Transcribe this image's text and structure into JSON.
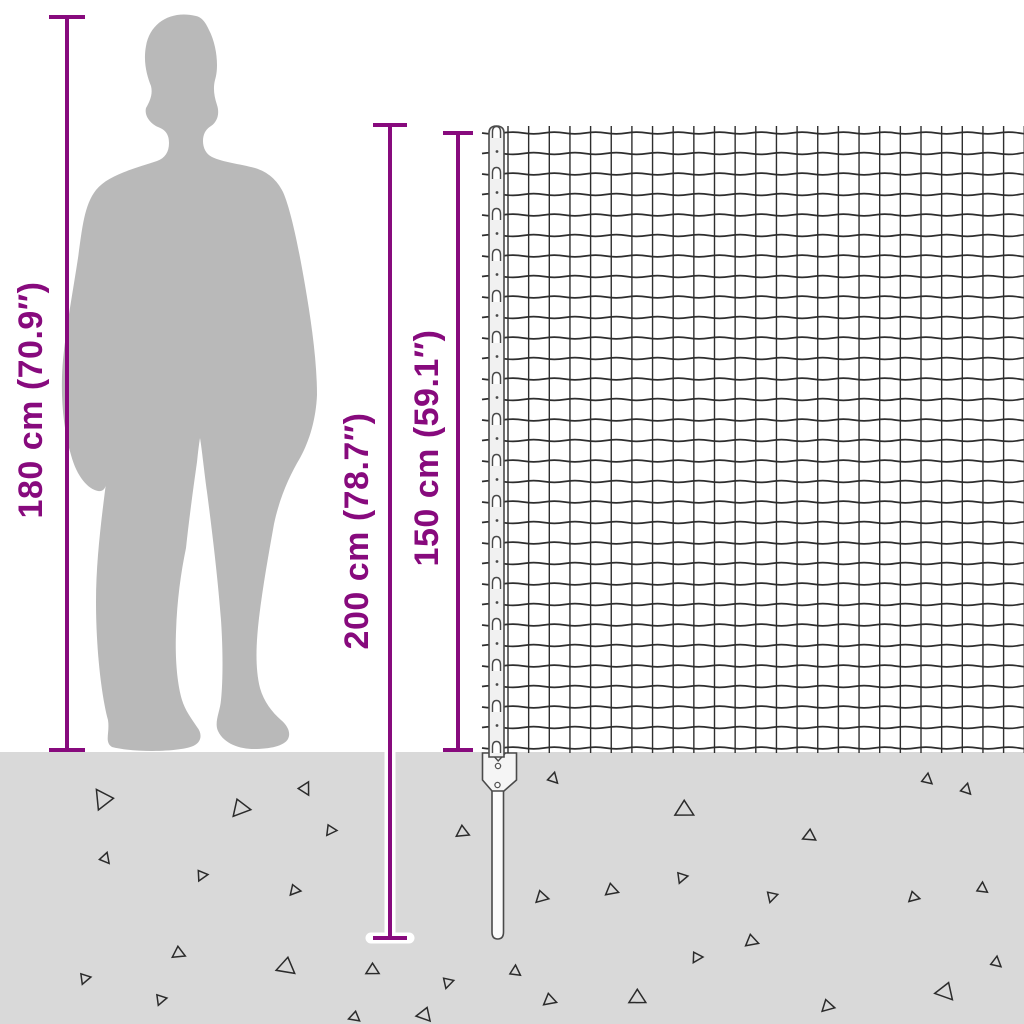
{
  "figure": {
    "type": "product-dimension-diagram",
    "subject": "wire mesh fence with post and ground stake next to human silhouette",
    "measurements": [
      {
        "id": "person-height",
        "metric": "180 cm",
        "imperial": "70.9″",
        "label": "180 cm (70.9″)"
      },
      {
        "id": "post-length",
        "metric": "200 cm",
        "imperial": "78.7″",
        "label": "200 cm (78.7″)"
      },
      {
        "id": "fence-height",
        "metric": "150 cm",
        "imperial": "59.1″",
        "label": "150 cm (59.1″)"
      }
    ],
    "colors": {
      "accent": "#870a7d",
      "ground": "#d9d9d9",
      "silhouette": "#b9b9b9",
      "wire": "#2e2e2e",
      "post_outline": "#4a4a4a"
    }
  }
}
